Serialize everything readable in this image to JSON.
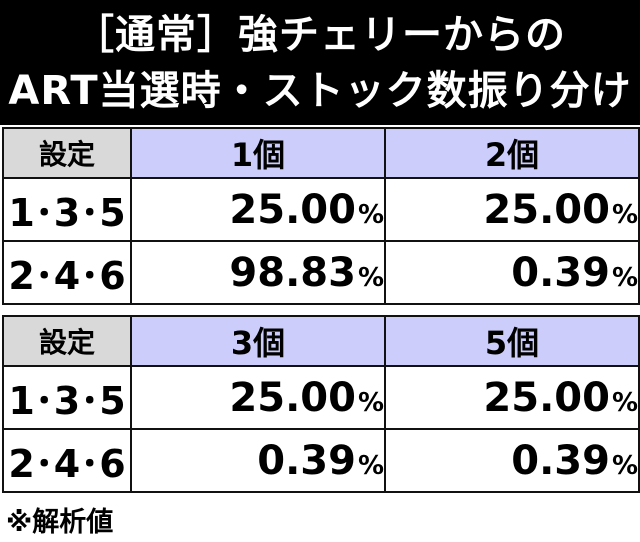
{
  "title": {
    "line1": "［通常］強チェリーからの",
    "line2": "ART当選時・ストック数振り分け"
  },
  "tables": [
    {
      "headers": [
        "設定",
        "1個",
        "2個"
      ],
      "rows": [
        {
          "setting": "1･3･5",
          "values": [
            "25.00",
            "25.00"
          ]
        },
        {
          "setting": "2･4･6",
          "values": [
            "98.83",
            "0.39"
          ]
        }
      ]
    },
    {
      "headers": [
        "設定",
        "3個",
        "5個"
      ],
      "rows": [
        {
          "setting": "1･3･5",
          "values": [
            "25.00",
            "25.00"
          ]
        },
        {
          "setting": "2･4･6",
          "values": [
            "0.39",
            "0.39"
          ]
        }
      ]
    }
  ],
  "percent_sign": "%",
  "footnote": "※解析値",
  "colors": {
    "title_background": "#000000",
    "setting_header": "#d9d9d9",
    "count_header": "#cccdfa"
  }
}
